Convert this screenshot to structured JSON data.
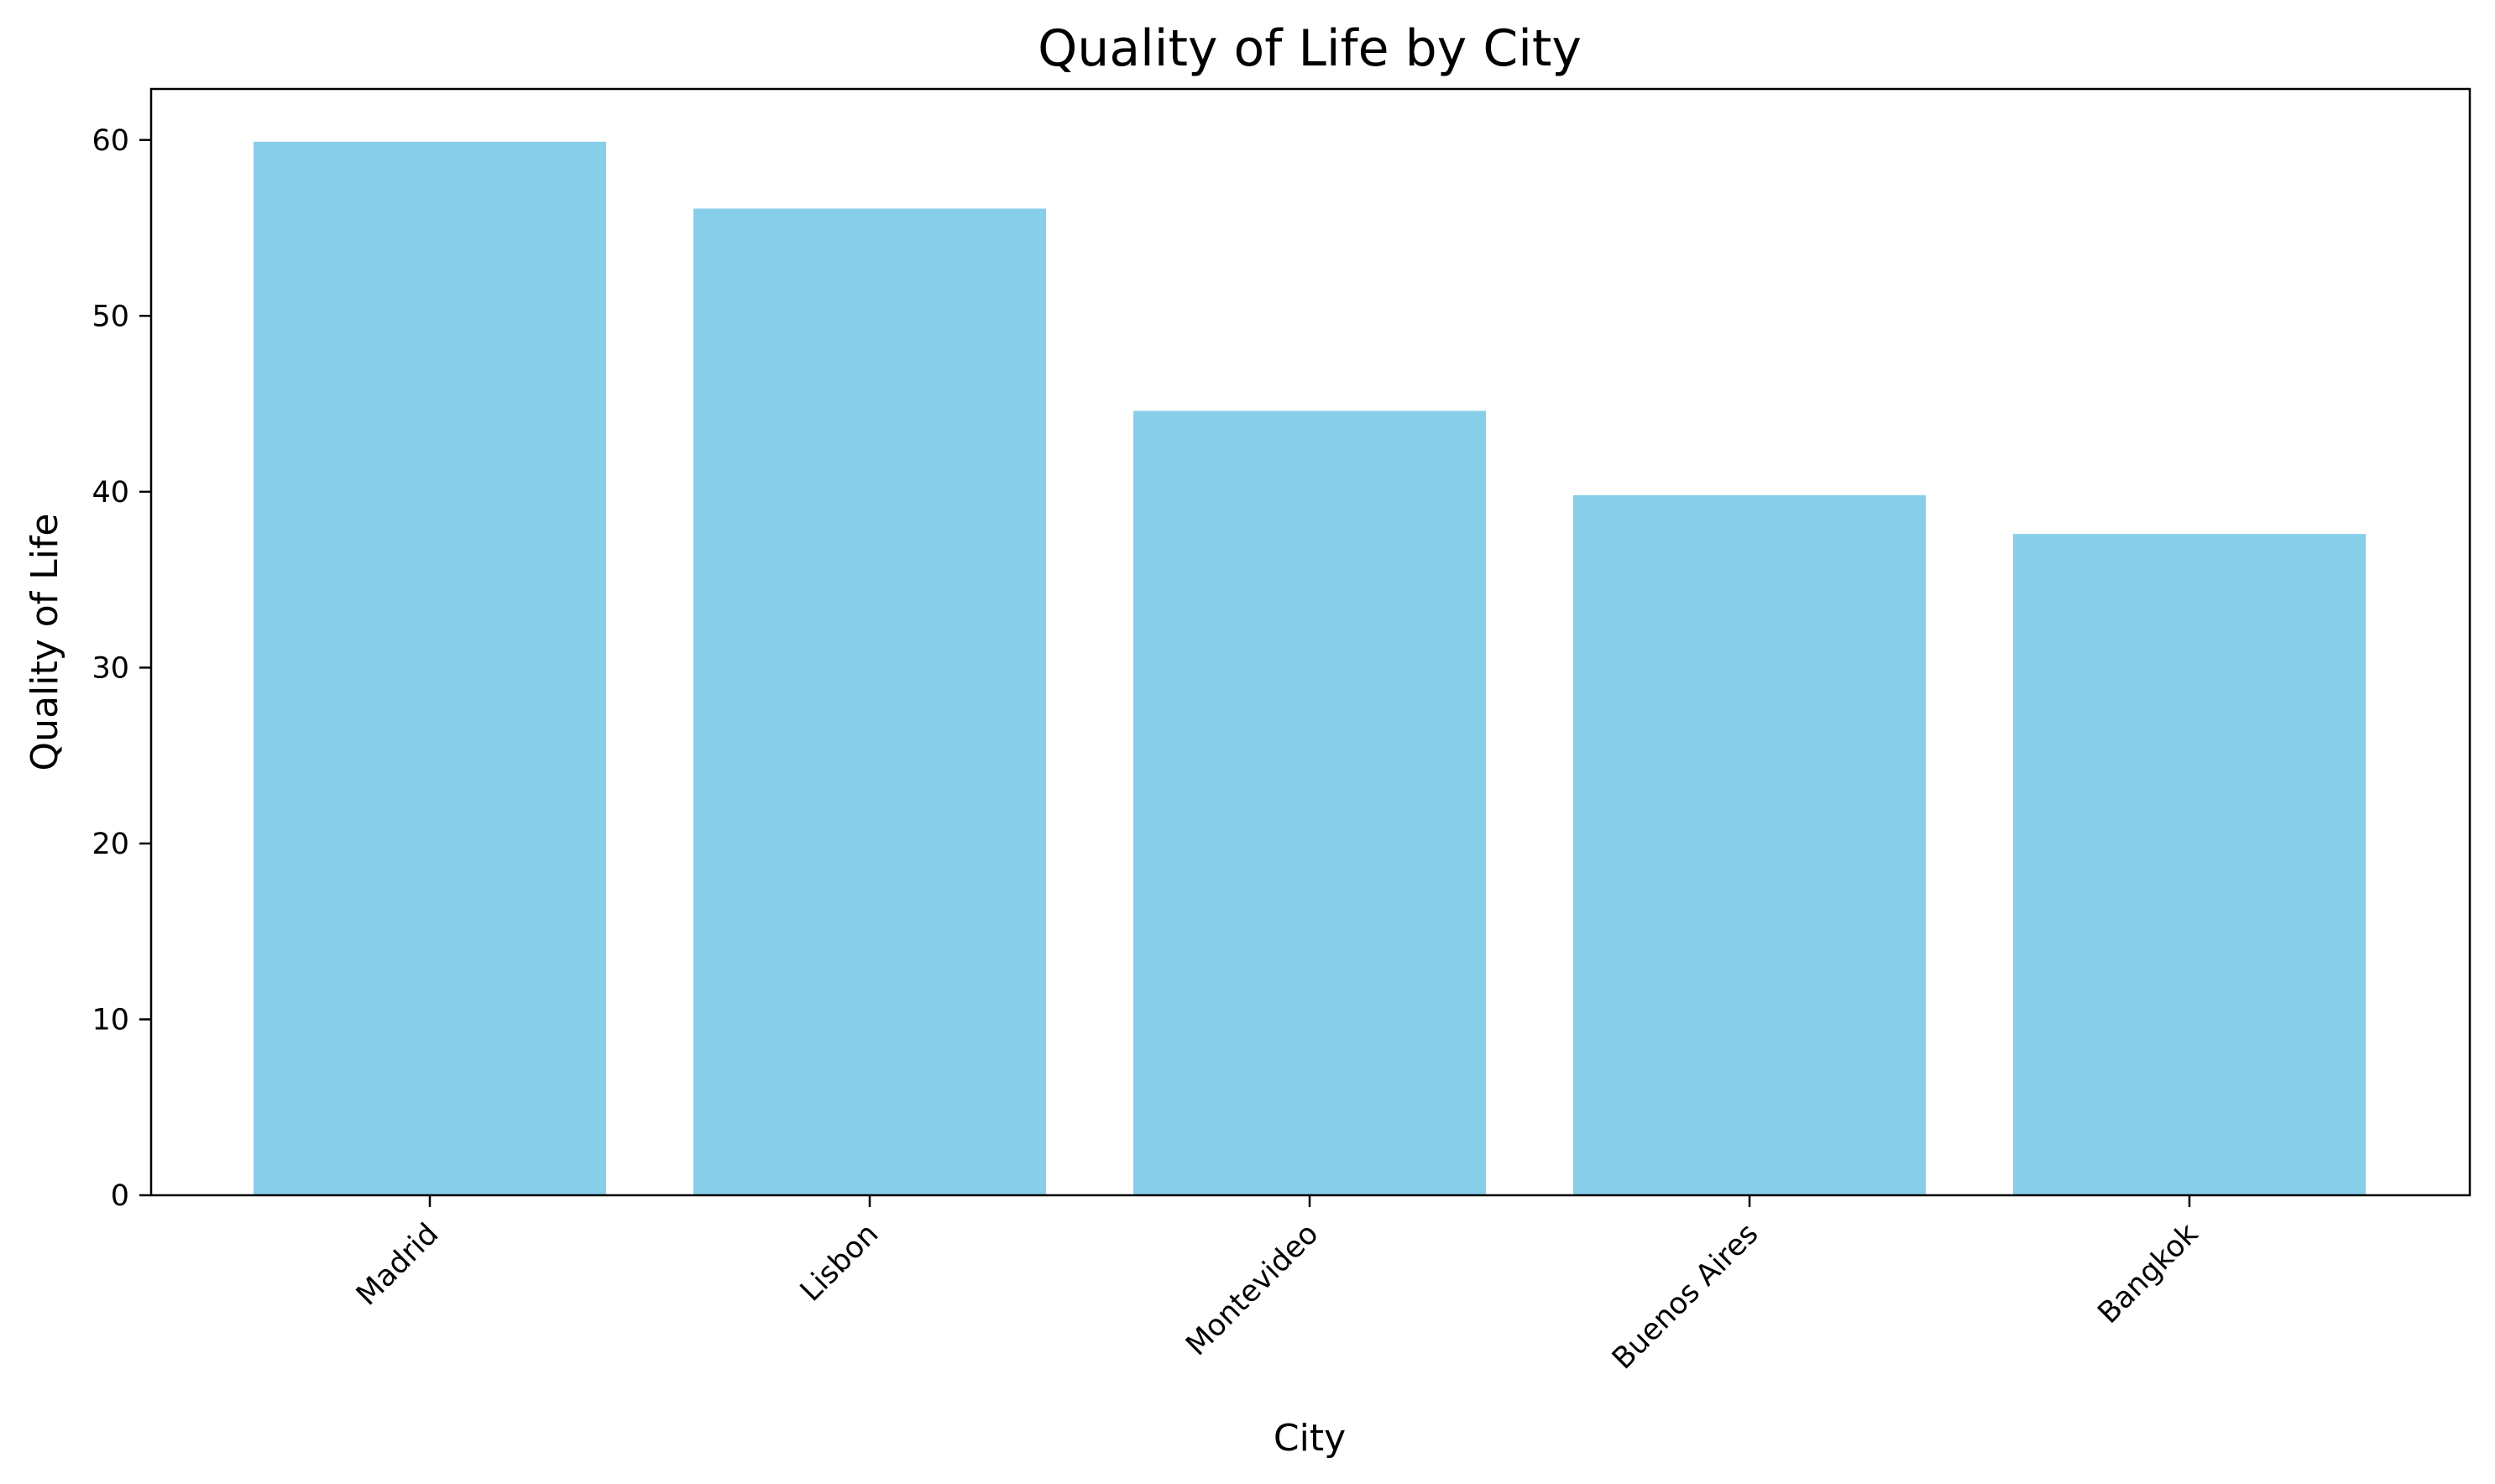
{
  "chart_data": {
    "type": "bar",
    "title": "Quality of Life by City",
    "xlabel": "City",
    "ylabel": "Quality of Life",
    "categories": [
      "Madrid",
      "Lisbon",
      "Montevideo",
      "Buenos Aires",
      "Bangkok"
    ],
    "values": [
      59.9,
      56.1,
      44.6,
      39.8,
      37.6
    ],
    "yticks": [
      0,
      10,
      20,
      30,
      40,
      50,
      60
    ],
    "ylim": [
      0,
      62.9
    ],
    "grid": false,
    "legend": "none",
    "bar_color": "#87CEEB",
    "xtick_rotation": 45
  }
}
